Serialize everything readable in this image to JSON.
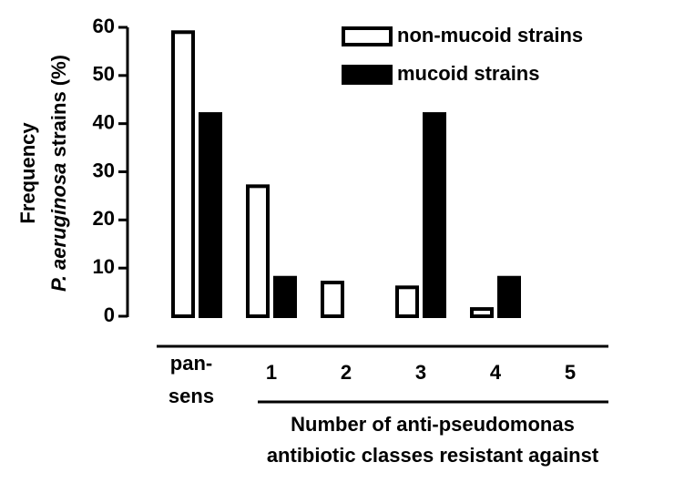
{
  "chart_data": {
    "type": "bar",
    "ylabel": [
      "Frequency",
      "P. aeruginosa",
      "strains (%)"
    ],
    "xlabel": [
      "Number of anti-pseudomonas",
      "antibiotic classes resistant against"
    ],
    "categories": [
      "pan-\nsens",
      "1",
      "2",
      "3",
      "4",
      "5"
    ],
    "series": [
      {
        "name": "non-mucoid strains",
        "color": "#ffffff",
        "values": [
          59,
          27,
          7,
          6,
          1.5,
          0
        ]
      },
      {
        "name": "mucoid strains",
        "color": "#000000",
        "values": [
          42,
          8,
          0,
          42,
          8,
          0
        ]
      }
    ],
    "ylim": [
      0,
      60
    ],
    "yticks": [
      0,
      10,
      20,
      30,
      40,
      50,
      60
    ]
  }
}
